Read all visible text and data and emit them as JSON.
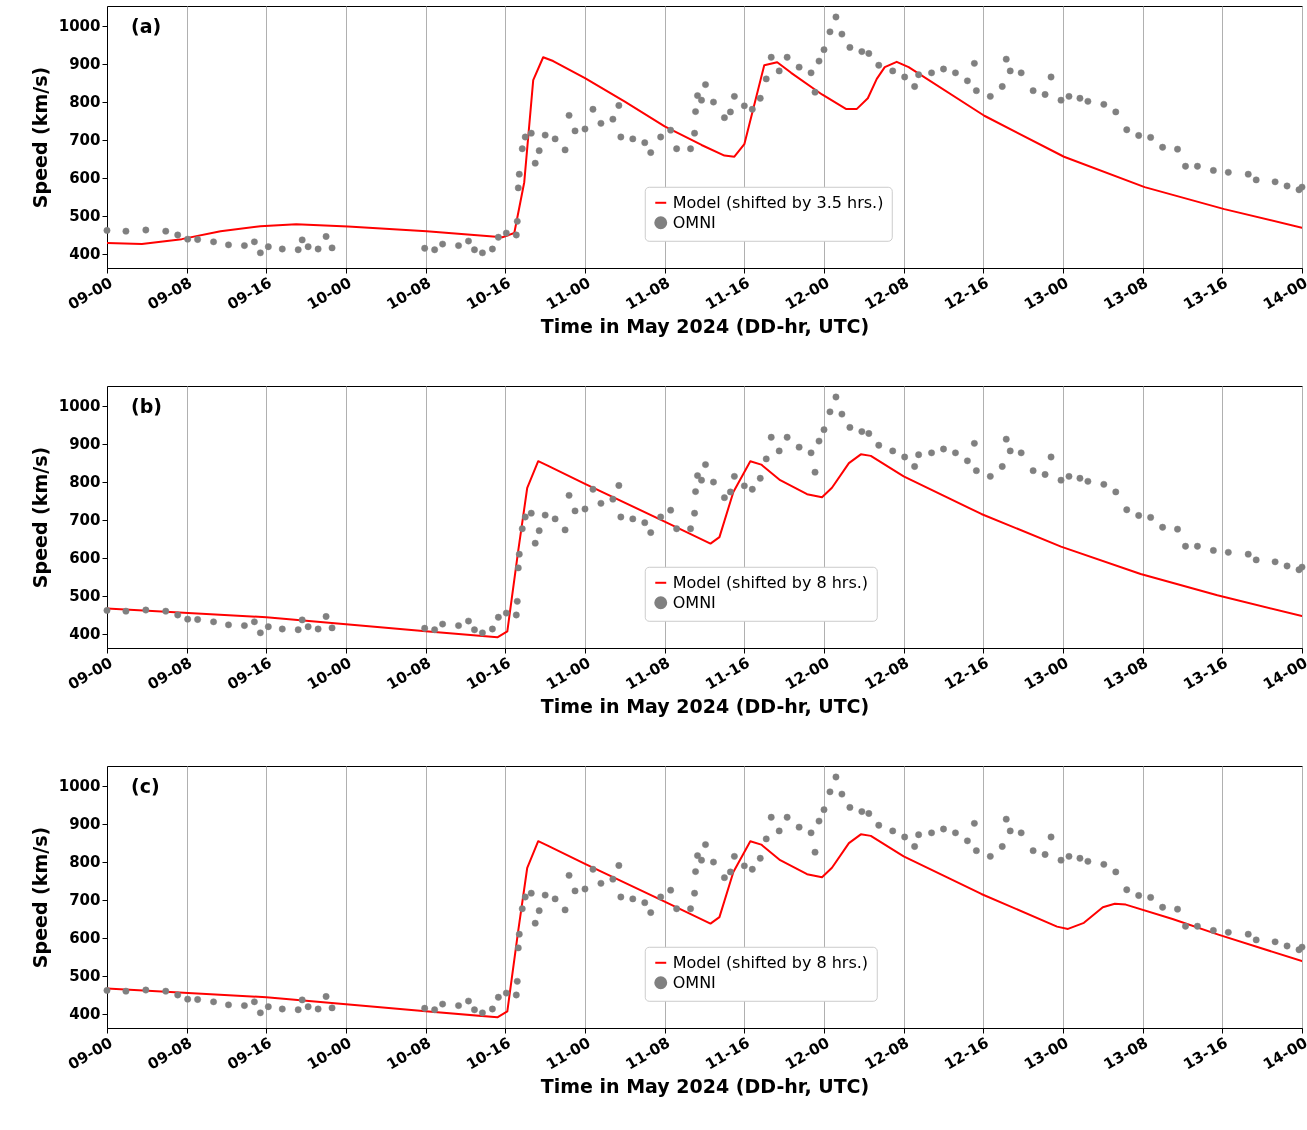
{
  "chart_data": [
    {
      "type": "line",
      "title": "(a)",
      "xlabel": "Time in May 2024 (DD-hr, UTC)",
      "ylabel": "Speed (km/s)",
      "xlim": [
        "2024-05-09T00:00",
        "2024-05-14T00:00"
      ],
      "ylim": [
        362,
        1052
      ],
      "xticks": [
        {
          "value": "2024-05-09T00:00",
          "label": "09-00"
        },
        {
          "value": "2024-05-09T08:00",
          "label": "09-08"
        },
        {
          "value": "2024-05-09T16:00",
          "label": "09-16"
        },
        {
          "value": "2024-05-10T00:00",
          "label": "10-00"
        },
        {
          "value": "2024-05-10T08:00",
          "label": "10-08"
        },
        {
          "value": "2024-05-10T16:00",
          "label": "10-16"
        },
        {
          "value": "2024-05-11T00:00",
          "label": "11-00"
        },
        {
          "value": "2024-05-11T08:00",
          "label": "11-08"
        },
        {
          "value": "2024-05-11T16:00",
          "label": "11-16"
        },
        {
          "value": "2024-05-12T00:00",
          "label": "12-00"
        },
        {
          "value": "2024-05-12T08:00",
          "label": "12-08"
        },
        {
          "value": "2024-05-12T16:00",
          "label": "12-16"
        },
        {
          "value": "2024-05-13T00:00",
          "label": "13-00"
        },
        {
          "value": "2024-05-13T08:00",
          "label": "13-08"
        },
        {
          "value": "2024-05-13T16:00",
          "label": "13-16"
        },
        {
          "value": "2024-05-14T00:00",
          "label": "14-00"
        }
      ],
      "yticks": [
        400,
        500,
        600,
        700,
        800,
        900,
        1000
      ],
      "grid": "x",
      "legend": "bottom",
      "series": [
        {
          "name": "Model (shifted by 3.5 hrs.)",
          "type": "line",
          "color": "#ff0000",
          "line_style": "solid",
          "x": [
            "2024-05-09T00:00",
            "2024-05-09T03:30",
            "2024-05-09T07:30",
            "2024-05-09T11:24",
            "2024-05-09T15:24",
            "2024-05-09T19:00",
            "2024-05-10T00:12",
            "2024-05-10T08:06",
            "2024-05-10T15:42",
            "2024-05-10T16:54",
            "2024-05-10T17:54",
            "2024-05-10T18:48",
            "2024-05-10T19:48",
            "2024-05-10T20:48",
            "2024-05-11T00:00",
            "2024-05-11T04:00",
            "2024-05-11T08:00",
            "2024-05-11T11:42",
            "2024-05-11T14:00",
            "2024-05-11T15:00",
            "2024-05-11T16:00",
            "2024-05-11T18:00",
            "2024-05-11T19:18",
            "2024-05-11T20:42",
            "2024-05-11T23:48",
            "2024-05-12T02:12",
            "2024-05-12T03:18",
            "2024-05-12T04:24",
            "2024-05-12T05:18",
            "2024-05-12T06:06",
            "2024-05-12T07:18",
            "2024-05-12T08:30",
            "2024-05-12T16:06",
            "2024-05-13T00:06",
            "2024-05-13T08:12",
            "2024-05-13T16:12",
            "2024-05-14T00:00"
          ],
          "values": [
            428,
            425,
            438,
            459,
            472,
            477,
            471,
            459,
            443,
            454,
            588,
            857,
            917,
            907,
            862,
            800,
            735,
            686,
            658,
            655,
            688,
            896,
            904,
            876,
            819,
            781,
            781,
            809,
            860,
            891,
            905,
            891,
            763,
            655,
            575,
            517,
            468
          ]
        },
        {
          "name": "OMNI",
          "type": "scatter",
          "marker": "circle",
          "color": "#808080",
          "x": [
            "2024-05-09T00:00",
            "2024-05-09T01:54",
            "2024-05-09T03:54",
            "2024-05-09T05:54",
            "2024-05-09T07:06",
            "2024-05-09T08:06",
            "2024-05-09T09:06",
            "2024-05-09T10:42",
            "2024-05-09T12:12",
            "2024-05-09T13:48",
            "2024-05-09T14:48",
            "2024-05-09T15:24",
            "2024-05-09T16:12",
            "2024-05-09T17:36",
            "2024-05-09T19:12",
            "2024-05-09T19:36",
            "2024-05-09T20:12",
            "2024-05-09T21:12",
            "2024-05-09T22:00",
            "2024-05-09T22:36",
            "2024-05-10T07:54",
            "2024-05-10T08:54",
            "2024-05-10T09:42",
            "2024-05-10T11:18",
            "2024-05-10T12:18",
            "2024-05-10T12:54",
            "2024-05-10T13:42",
            "2024-05-10T14:42",
            "2024-05-10T15:18",
            "2024-05-10T16:06",
            "2024-05-10T17:06",
            "2024-05-10T17:12",
            "2024-05-10T17:18",
            "2024-05-10T17:24",
            "2024-05-10T17:42",
            "2024-05-10T18:00",
            "2024-05-10T18:36",
            "2024-05-10T19:00",
            "2024-05-10T19:24",
            "2024-05-10T20:00",
            "2024-05-10T21:00",
            "2024-05-10T22:00",
            "2024-05-10T22:24",
            "2024-05-10T23:00",
            "2024-05-11T00:00",
            "2024-05-11T00:48",
            "2024-05-11T01:36",
            "2024-05-11T02:48",
            "2024-05-11T03:24",
            "2024-05-11T03:36",
            "2024-05-11T04:48",
            "2024-05-11T06:00",
            "2024-05-11T06:36",
            "2024-05-11T07:36",
            "2024-05-11T08:36",
            "2024-05-11T09:12",
            "2024-05-11T10:36",
            "2024-05-11T11:00",
            "2024-05-11T11:06",
            "2024-05-11T11:18",
            "2024-05-11T11:42",
            "2024-05-11T12:06",
            "2024-05-11T12:54",
            "2024-05-11T14:00",
            "2024-05-11T14:36",
            "2024-05-11T15:00",
            "2024-05-11T16:00",
            "2024-05-11T16:48",
            "2024-05-11T17:36",
            "2024-05-11T18:12",
            "2024-05-11T18:42",
            "2024-05-11T19:30",
            "2024-05-11T20:18",
            "2024-05-11T21:30",
            "2024-05-11T22:42",
            "2024-05-11T23:06",
            "2024-05-11T23:30",
            "2024-05-12T00:00",
            "2024-05-12T00:36",
            "2024-05-12T01:12",
            "2024-05-12T01:48",
            "2024-05-12T02:36",
            "2024-05-12T03:48",
            "2024-05-12T04:30",
            "2024-05-12T05:30",
            "2024-05-12T06:54",
            "2024-05-12T08:06",
            "2024-05-12T09:06",
            "2024-05-12T09:30",
            "2024-05-12T10:48",
            "2024-05-12T12:00",
            "2024-05-12T13:12",
            "2024-05-12T14:24",
            "2024-05-12T15:06",
            "2024-05-12T15:18",
            "2024-05-12T16:42",
            "2024-05-12T17:54",
            "2024-05-12T18:18",
            "2024-05-12T18:42",
            "2024-05-12T19:48",
            "2024-05-12T21:00",
            "2024-05-12T22:12",
            "2024-05-12T22:48",
            "2024-05-12T23:48",
            "2024-05-13T00:36",
            "2024-05-13T01:42",
            "2024-05-13T02:30",
            "2024-05-13T04:06",
            "2024-05-13T05:18",
            "2024-05-13T06:24",
            "2024-05-13T07:36",
            "2024-05-13T08:48",
            "2024-05-13T10:00",
            "2024-05-13T11:30",
            "2024-05-13T12:18",
            "2024-05-13T13:30",
            "2024-05-13T15:06",
            "2024-05-13T16:36",
            "2024-05-13T18:36",
            "2024-05-13T19:24",
            "2024-05-13T21:18",
            "2024-05-13T22:30",
            "2024-05-13T23:42",
            "2024-05-14T00:00"
          ],
          "values": [
            461,
            459,
            462,
            459,
            449,
            438,
            437,
            431,
            423,
            421,
            431,
            402,
            418,
            412,
            410,
            436,
            418,
            412,
            445,
            415,
            414,
            410,
            425,
            421,
            433,
            410,
            402,
            412,
            443,
            454,
            449,
            485,
            573,
            609,
            676,
            707,
            717,
            638,
            671,
            712,
            702,
            673,
            764,
            723,
            728,
            780,
            743,
            754,
            790,
            707,
            702,
            692,
            666,
            707,
            725,
            676,
            676,
            717,
            774,
            816,
            804,
            845,
            799,
            758,
            773,
            814,
            789,
            780,
            809,
            860,
            917,
            881,
            917,
            891,
            876,
            825,
            907,
            937,
            984,
            1023,
            978,
            943,
            932,
            927,
            896,
            881,
            865,
            840,
            871,
            876,
            886,
            876,
            855,
            901,
            829,
            814,
            840,
            912,
            881,
            876,
            829,
            819,
            865,
            804,
            814,
            809,
            801,
            793,
            773,
            726,
            711,
            706,
            680,
            675,
            630,
            630,
            619,
            614,
            609,
            594,
            589,
            578,
            568,
            575
          ]
        }
      ]
    },
    {
      "type": "line",
      "title": "(b)",
      "xlabel": "Time in May 2024 (DD-hr, UTC)",
      "ylabel": "Speed (km/s)",
      "xlim": [
        "2024-05-09T00:00",
        "2024-05-14T00:00"
      ],
      "ylim": [
        362,
        1052
      ],
      "xticks": [
        {
          "value": "2024-05-09T00:00",
          "label": "09-00"
        },
        {
          "value": "2024-05-09T08:00",
          "label": "09-08"
        },
        {
          "value": "2024-05-09T16:00",
          "label": "09-16"
        },
        {
          "value": "2024-05-10T00:00",
          "label": "10-00"
        },
        {
          "value": "2024-05-10T08:00",
          "label": "10-08"
        },
        {
          "value": "2024-05-10T16:00",
          "label": "10-16"
        },
        {
          "value": "2024-05-11T00:00",
          "label": "11-00"
        },
        {
          "value": "2024-05-11T08:00",
          "label": "11-08"
        },
        {
          "value": "2024-05-11T16:00",
          "label": "11-16"
        },
        {
          "value": "2024-05-12T00:00",
          "label": "12-00"
        },
        {
          "value": "2024-05-12T08:00",
          "label": "12-08"
        },
        {
          "value": "2024-05-12T16:00",
          "label": "12-16"
        },
        {
          "value": "2024-05-13T00:00",
          "label": "13-00"
        },
        {
          "value": "2024-05-13T08:00",
          "label": "13-08"
        },
        {
          "value": "2024-05-13T16:00",
          "label": "13-16"
        },
        {
          "value": "2024-05-14T00:00",
          "label": "14-00"
        }
      ],
      "yticks": [
        400,
        500,
        600,
        700,
        800,
        900,
        1000
      ],
      "grid": "x",
      "legend": "bottom",
      "series": [
        {
          "name": "Model (shifted by 8 hrs.)",
          "type": "line",
          "color": "#ff0000",
          "line_style": "solid",
          "x": [
            "2024-05-09T00:00",
            "2024-05-09T16:00",
            "2024-05-10T08:00",
            "2024-05-10T15:12",
            "2024-05-10T16:12",
            "2024-05-10T17:18",
            "2024-05-10T18:12",
            "2024-05-10T19:18",
            "2024-05-10T20:12",
            "2024-05-11T00:00",
            "2024-05-11T08:00",
            "2024-05-11T12:36",
            "2024-05-11T13:30",
            "2024-05-11T14:54",
            "2024-05-11T16:36",
            "2024-05-11T17:42",
            "2024-05-11T19:36",
            "2024-05-11T22:18",
            "2024-05-11T23:48",
            "2024-05-12T00:48",
            "2024-05-12T02:30",
            "2024-05-12T03:42",
            "2024-05-12T04:42",
            "2024-05-12T08:00",
            "2024-05-12T15:48",
            "2024-05-12T23:48",
            "2024-05-13T07:48",
            "2024-05-13T15:30",
            "2024-05-14T00:00"
          ],
          "values": [
            466,
            443,
            406,
            390,
            406,
            619,
            784,
            854,
            843,
            794,
            695,
            637,
            654,
            773,
            854,
            845,
            804,
            767,
            759,
            784,
            849,
            872,
            868,
            814,
            715,
            629,
            557,
            501,
            446
          ]
        },
        {
          "name": "OMNI",
          "type": "scatter",
          "marker": "circle",
          "color": "#808080",
          "x": [
            "2024-05-09T00:00",
            "2024-05-09T01:54",
            "2024-05-09T03:54",
            "2024-05-09T05:54",
            "2024-05-09T07:06",
            "2024-05-09T08:06",
            "2024-05-09T09:06",
            "2024-05-09T10:42",
            "2024-05-09T12:12",
            "2024-05-09T13:48",
            "2024-05-09T14:48",
            "2024-05-09T15:24",
            "2024-05-09T16:12",
            "2024-05-09T17:36",
            "2024-05-09T19:12",
            "2024-05-09T19:36",
            "2024-05-09T20:12",
            "2024-05-09T21:12",
            "2024-05-09T22:00",
            "2024-05-09T22:36",
            "2024-05-10T07:54",
            "2024-05-10T08:54",
            "2024-05-10T09:42",
            "2024-05-10T11:18",
            "2024-05-10T12:18",
            "2024-05-10T12:54",
            "2024-05-10T13:42",
            "2024-05-10T14:42",
            "2024-05-10T15:18",
            "2024-05-10T16:06",
            "2024-05-10T17:06",
            "2024-05-10T17:12",
            "2024-05-10T17:18",
            "2024-05-10T17:24",
            "2024-05-10T17:42",
            "2024-05-10T18:00",
            "2024-05-10T18:36",
            "2024-05-10T19:00",
            "2024-05-10T19:24",
            "2024-05-10T20:00",
            "2024-05-10T21:00",
            "2024-05-10T22:00",
            "2024-05-10T22:24",
            "2024-05-10T23:00",
            "2024-05-11T00:00",
            "2024-05-11T00:48",
            "2024-05-11T01:36",
            "2024-05-11T02:48",
            "2024-05-11T03:24",
            "2024-05-11T03:36",
            "2024-05-11T04:48",
            "2024-05-11T06:00",
            "2024-05-11T06:36",
            "2024-05-11T07:36",
            "2024-05-11T08:36",
            "2024-05-11T09:12",
            "2024-05-11T10:36",
            "2024-05-11T11:00",
            "2024-05-11T11:06",
            "2024-05-11T11:18",
            "2024-05-11T11:42",
            "2024-05-11T12:06",
            "2024-05-11T12:54",
            "2024-05-11T14:00",
            "2024-05-11T14:36",
            "2024-05-11T15:00",
            "2024-05-11T16:00",
            "2024-05-11T16:48",
            "2024-05-11T17:36",
            "2024-05-11T18:12",
            "2024-05-11T18:42",
            "2024-05-11T19:30",
            "2024-05-11T20:18",
            "2024-05-11T21:30",
            "2024-05-11T22:42",
            "2024-05-11T23:06",
            "2024-05-11T23:30",
            "2024-05-12T00:00",
            "2024-05-12T00:36",
            "2024-05-12T01:12",
            "2024-05-12T01:48",
            "2024-05-12T02:36",
            "2024-05-12T03:48",
            "2024-05-12T04:30",
            "2024-05-12T05:30",
            "2024-05-12T06:54",
            "2024-05-12T08:06",
            "2024-05-12T09:06",
            "2024-05-12T09:30",
            "2024-05-12T10:48",
            "2024-05-12T12:00",
            "2024-05-12T13:12",
            "2024-05-12T14:24",
            "2024-05-12T15:06",
            "2024-05-12T15:18",
            "2024-05-12T16:42",
            "2024-05-12T17:54",
            "2024-05-12T18:18",
            "2024-05-12T18:42",
            "2024-05-12T19:48",
            "2024-05-12T21:00",
            "2024-05-12T22:12",
            "2024-05-12T22:48",
            "2024-05-12T23:48",
            "2024-05-13T00:36",
            "2024-05-13T01:42",
            "2024-05-13T02:30",
            "2024-05-13T04:06",
            "2024-05-13T05:18",
            "2024-05-13T06:24",
            "2024-05-13T07:36",
            "2024-05-13T08:48",
            "2024-05-13T10:00",
            "2024-05-13T11:30",
            "2024-05-13T12:18",
            "2024-05-13T13:30",
            "2024-05-13T15:06",
            "2024-05-13T16:36",
            "2024-05-13T18:36",
            "2024-05-13T19:24",
            "2024-05-13T21:18",
            "2024-05-13T22:30",
            "2024-05-13T23:42",
            "2024-05-14T00:00"
          ],
          "values": [
            461,
            459,
            462,
            459,
            449,
            438,
            437,
            431,
            423,
            421,
            431,
            402,
            418,
            412,
            410,
            436,
            418,
            412,
            445,
            415,
            414,
            410,
            425,
            421,
            433,
            410,
            402,
            412,
            443,
            454,
            449,
            485,
            573,
            609,
            676,
            707,
            717,
            638,
            671,
            712,
            702,
            673,
            764,
            723,
            728,
            780,
            743,
            754,
            790,
            707,
            702,
            692,
            666,
            707,
            725,
            676,
            676,
            717,
            774,
            816,
            804,
            845,
            799,
            758,
            773,
            814,
            789,
            780,
            809,
            860,
            917,
            881,
            917,
            891,
            876,
            825,
            907,
            937,
            984,
            1023,
            978,
            943,
            932,
            927,
            896,
            881,
            865,
            840,
            871,
            876,
            886,
            876,
            855,
            901,
            829,
            814,
            840,
            912,
            881,
            876,
            829,
            819,
            865,
            804,
            814,
            809,
            801,
            793,
            773,
            726,
            711,
            706,
            680,
            675,
            630,
            630,
            619,
            614,
            609,
            594,
            589,
            578,
            568,
            575
          ]
        }
      ]
    },
    {
      "type": "line",
      "title": "(c)",
      "xlabel": "Time in May 2024 (DD-hr, UTC)",
      "ylabel": "Speed (km/s)",
      "xlim": [
        "2024-05-09T00:00",
        "2024-05-14T00:00"
      ],
      "ylim": [
        362,
        1052
      ],
      "xticks": [
        {
          "value": "2024-05-09T00:00",
          "label": "09-00"
        },
        {
          "value": "2024-05-09T08:00",
          "label": "09-08"
        },
        {
          "value": "2024-05-09T16:00",
          "label": "09-16"
        },
        {
          "value": "2024-05-10T00:00",
          "label": "10-00"
        },
        {
          "value": "2024-05-10T08:00",
          "label": "10-08"
        },
        {
          "value": "2024-05-10T16:00",
          "label": "10-16"
        },
        {
          "value": "2024-05-11T00:00",
          "label": "11-00"
        },
        {
          "value": "2024-05-11T08:00",
          "label": "11-08"
        },
        {
          "value": "2024-05-11T16:00",
          "label": "11-16"
        },
        {
          "value": "2024-05-12T00:00",
          "label": "12-00"
        },
        {
          "value": "2024-05-12T08:00",
          "label": "12-08"
        },
        {
          "value": "2024-05-12T16:00",
          "label": "12-16"
        },
        {
          "value": "2024-05-13T00:00",
          "label": "13-00"
        },
        {
          "value": "2024-05-13T08:00",
          "label": "13-08"
        },
        {
          "value": "2024-05-13T16:00",
          "label": "13-16"
        },
        {
          "value": "2024-05-14T00:00",
          "label": "14-00"
        }
      ],
      "yticks": [
        400,
        500,
        600,
        700,
        800,
        900,
        1000
      ],
      "grid": "x",
      "legend": "bottom",
      "series": [
        {
          "name": "Model (shifted by 8 hrs.)",
          "type": "line",
          "color": "#ff0000",
          "line_style": "solid",
          "x": [
            "2024-05-09T00:00",
            "2024-05-09T16:00",
            "2024-05-10T08:00",
            "2024-05-10T15:12",
            "2024-05-10T16:12",
            "2024-05-10T17:18",
            "2024-05-10T18:12",
            "2024-05-10T19:18",
            "2024-05-10T20:12",
            "2024-05-11T00:00",
            "2024-05-11T08:00",
            "2024-05-11T12:36",
            "2024-05-11T13:30",
            "2024-05-11T14:54",
            "2024-05-11T16:36",
            "2024-05-11T17:42",
            "2024-05-11T19:36",
            "2024-05-11T22:18",
            "2024-05-11T23:48",
            "2024-05-12T00:48",
            "2024-05-12T02:30",
            "2024-05-12T03:42",
            "2024-05-12T04:42",
            "2024-05-12T08:00",
            "2024-05-12T15:48",
            "2024-05-12T23:24",
            "2024-05-13T00:30",
            "2024-05-13T02:06",
            "2024-05-13T04:00",
            "2024-05-13T05:12",
            "2024-05-13T06:18",
            "2024-05-13T11:00",
            "2024-05-13T15:36",
            "2024-05-14T00:00"
          ],
          "values": [
            466,
            443,
            406,
            390,
            406,
            619,
            784,
            854,
            843,
            794,
            695,
            637,
            654,
            773,
            854,
            845,
            804,
            767,
            759,
            784,
            849,
            872,
            868,
            814,
            715,
            629,
            623,
            639,
            680,
            689,
            687,
            649,
            608,
            538
          ]
        },
        {
          "name": "OMNI",
          "type": "scatter",
          "marker": "circle",
          "color": "#808080",
          "x": [
            "2024-05-09T00:00",
            "2024-05-09T01:54",
            "2024-05-09T03:54",
            "2024-05-09T05:54",
            "2024-05-09T07:06",
            "2024-05-09T08:06",
            "2024-05-09T09:06",
            "2024-05-09T10:42",
            "2024-05-09T12:12",
            "2024-05-09T13:48",
            "2024-05-09T14:48",
            "2024-05-09T15:24",
            "2024-05-09T16:12",
            "2024-05-09T17:36",
            "2024-05-09T19:12",
            "2024-05-09T19:36",
            "2024-05-09T20:12",
            "2024-05-09T21:12",
            "2024-05-09T22:00",
            "2024-05-09T22:36",
            "2024-05-10T07:54",
            "2024-05-10T08:54",
            "2024-05-10T09:42",
            "2024-05-10T11:18",
            "2024-05-10T12:18",
            "2024-05-10T12:54",
            "2024-05-10T13:42",
            "2024-05-10T14:42",
            "2024-05-10T15:18",
            "2024-05-10T16:06",
            "2024-05-10T17:06",
            "2024-05-10T17:12",
            "2024-05-10T17:18",
            "2024-05-10T17:24",
            "2024-05-10T17:42",
            "2024-05-10T18:00",
            "2024-05-10T18:36",
            "2024-05-10T19:00",
            "2024-05-10T19:24",
            "2024-05-10T20:00",
            "2024-05-10T21:00",
            "2024-05-10T22:00",
            "2024-05-10T22:24",
            "2024-05-10T23:00",
            "2024-05-11T00:00",
            "2024-05-11T00:48",
            "2024-05-11T01:36",
            "2024-05-11T02:48",
            "2024-05-11T03:24",
            "2024-05-11T03:36",
            "2024-05-11T04:48",
            "2024-05-11T06:00",
            "2024-05-11T06:36",
            "2024-05-11T07:36",
            "2024-05-11T08:36",
            "2024-05-11T09:12",
            "2024-05-11T10:36",
            "2024-05-11T11:00",
            "2024-05-11T11:06",
            "2024-05-11T11:18",
            "2024-05-11T11:42",
            "2024-05-11T12:06",
            "2024-05-11T12:54",
            "2024-05-11T14:00",
            "2024-05-11T14:36",
            "2024-05-11T15:00",
            "2024-05-11T16:00",
            "2024-05-11T16:48",
            "2024-05-11T17:36",
            "2024-05-11T18:12",
            "2024-05-11T18:42",
            "2024-05-11T19:30",
            "2024-05-11T20:18",
            "2024-05-11T21:30",
            "2024-05-11T22:42",
            "2024-05-11T23:06",
            "2024-05-11T23:30",
            "2024-05-12T00:00",
            "2024-05-12T00:36",
            "2024-05-12T01:12",
            "2024-05-12T01:48",
            "2024-05-12T02:36",
            "2024-05-12T03:48",
            "2024-05-12T04:30",
            "2024-05-12T05:30",
            "2024-05-12T06:54",
            "2024-05-12T08:06",
            "2024-05-12T09:06",
            "2024-05-12T09:30",
            "2024-05-12T10:48",
            "2024-05-12T12:00",
            "2024-05-12T13:12",
            "2024-05-12T14:24",
            "2024-05-12T15:06",
            "2024-05-12T15:18",
            "2024-05-12T16:42",
            "2024-05-12T17:54",
            "2024-05-12T18:18",
            "2024-05-12T18:42",
            "2024-05-12T19:48",
            "2024-05-12T21:00",
            "2024-05-12T22:12",
            "2024-05-12T22:48",
            "2024-05-12T23:48",
            "2024-05-13T00:36",
            "2024-05-13T01:42",
            "2024-05-13T02:30",
            "2024-05-13T04:06",
            "2024-05-13T05:18",
            "2024-05-13T06:24",
            "2024-05-13T07:36",
            "2024-05-13T08:48",
            "2024-05-13T10:00",
            "2024-05-13T11:30",
            "2024-05-13T12:18",
            "2024-05-13T13:30",
            "2024-05-13T15:06",
            "2024-05-13T16:36",
            "2024-05-13T18:36",
            "2024-05-13T19:24",
            "2024-05-13T21:18",
            "2024-05-13T22:30",
            "2024-05-13T23:42",
            "2024-05-14T00:00"
          ],
          "values": [
            461,
            459,
            462,
            459,
            449,
            438,
            437,
            431,
            423,
            421,
            431,
            402,
            418,
            412,
            410,
            436,
            418,
            412,
            445,
            415,
            414,
            410,
            425,
            421,
            433,
            410,
            402,
            412,
            443,
            454,
            449,
            485,
            573,
            609,
            676,
            707,
            717,
            638,
            671,
            712,
            702,
            673,
            764,
            723,
            728,
            780,
            743,
            754,
            790,
            707,
            702,
            692,
            666,
            707,
            725,
            676,
            676,
            717,
            774,
            816,
            804,
            845,
            799,
            758,
            773,
            814,
            789,
            780,
            809,
            860,
            917,
            881,
            917,
            891,
            876,
            825,
            907,
            937,
            984,
            1023,
            978,
            943,
            932,
            927,
            896,
            881,
            865,
            840,
            871,
            876,
            886,
            876,
            855,
            901,
            829,
            814,
            840,
            912,
            881,
            876,
            829,
            819,
            865,
            804,
            814,
            809,
            801,
            793,
            773,
            726,
            711,
            706,
            680,
            675,
            630,
            630,
            619,
            614,
            609,
            594,
            589,
            578,
            568,
            575
          ]
        }
      ]
    }
  ]
}
